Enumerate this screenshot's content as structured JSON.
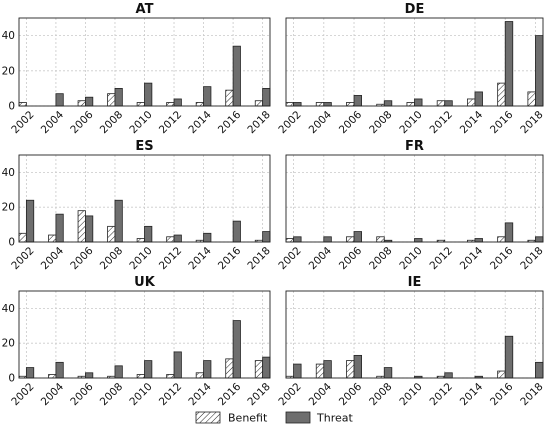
{
  "chart_data": [
    {
      "type": "bar",
      "title": "AT",
      "categories": [
        "2002",
        "2003",
        "2004",
        "2005",
        "2006",
        "2007",
        "2008",
        "2009",
        "2010",
        "2011",
        "2012",
        "2013",
        "2014",
        "2015",
        "2016",
        "2017",
        "2018"
      ],
      "series": [
        {
          "name": "Benefit",
          "values": [
            2,
            0,
            0,
            0,
            3,
            0,
            7,
            0,
            2,
            0,
            2,
            0,
            2,
            0,
            9,
            0,
            3
          ]
        },
        {
          "name": "Threat",
          "values": [
            0,
            0,
            7,
            0,
            5,
            0,
            10,
            0,
            13,
            0,
            4,
            0,
            11,
            0,
            34,
            0,
            10
          ]
        }
      ],
      "ylim": [
        0,
        50
      ],
      "yticks": [
        0,
        20,
        40
      ],
      "xticks": [
        "2002",
        "2004",
        "2006",
        "2008",
        "2010",
        "2012",
        "2014",
        "2016",
        "2018"
      ],
      "grid": true
    },
    {
      "type": "bar",
      "title": "DE",
      "categories": [
        "2002",
        "2003",
        "2004",
        "2005",
        "2006",
        "2007",
        "2008",
        "2009",
        "2010",
        "2011",
        "2012",
        "2013",
        "2014",
        "2015",
        "2016",
        "2017",
        "2018"
      ],
      "series": [
        {
          "name": "Benefit",
          "values": [
            2,
            0,
            2,
            0,
            2,
            0,
            1,
            0,
            2,
            0,
            3,
            0,
            4,
            0,
            13,
            0,
            8
          ]
        },
        {
          "name": "Threat",
          "values": [
            2,
            0,
            2,
            0,
            6,
            0,
            3,
            0,
            4,
            0,
            3,
            0,
            8,
            0,
            48,
            0,
            40
          ]
        }
      ],
      "ylim": [
        0,
        50
      ],
      "yticks": [
        0,
        20,
        40
      ],
      "xticks": [
        "2002",
        "2004",
        "2006",
        "2008",
        "2010",
        "2012",
        "2014",
        "2016",
        "2018"
      ],
      "grid": true
    },
    {
      "type": "bar",
      "title": "ES",
      "categories": [
        "2002",
        "2003",
        "2004",
        "2005",
        "2006",
        "2007",
        "2008",
        "2009",
        "2010",
        "2011",
        "2012",
        "2013",
        "2014",
        "2015",
        "2016",
        "2017",
        "2018"
      ],
      "series": [
        {
          "name": "Benefit",
          "values": [
            5,
            0,
            4,
            0,
            18,
            0,
            9,
            0,
            2,
            0,
            3,
            0,
            1,
            0,
            0,
            0,
            1
          ]
        },
        {
          "name": "Threat",
          "values": [
            24,
            0,
            16,
            0,
            15,
            0,
            24,
            0,
            9,
            0,
            4,
            0,
            5,
            0,
            12,
            0,
            6
          ]
        }
      ],
      "ylim": [
        0,
        50
      ],
      "yticks": [
        0,
        20,
        40
      ],
      "xticks": [
        "2002",
        "2004",
        "2006",
        "2008",
        "2010",
        "2012",
        "2014",
        "2016",
        "2018"
      ],
      "grid": true
    },
    {
      "type": "bar",
      "title": "FR",
      "categories": [
        "2002",
        "2003",
        "2004",
        "2005",
        "2006",
        "2007",
        "2008",
        "2009",
        "2010",
        "2011",
        "2012",
        "2013",
        "2014",
        "2015",
        "2016",
        "2017",
        "2018"
      ],
      "series": [
        {
          "name": "Benefit",
          "values": [
            2,
            0,
            0,
            0,
            3,
            0,
            3,
            0,
            0,
            0,
            1,
            0,
            1,
            0,
            3,
            0,
            1
          ]
        },
        {
          "name": "Threat",
          "values": [
            3,
            0,
            3,
            0,
            6,
            0,
            1,
            0,
            2,
            0,
            0,
            0,
            2,
            0,
            11,
            0,
            3
          ]
        }
      ],
      "ylim": [
        0,
        50
      ],
      "yticks": [
        0,
        20,
        40
      ],
      "xticks": [
        "2002",
        "2004",
        "2006",
        "2008",
        "2010",
        "2012",
        "2014",
        "2016",
        "2018"
      ],
      "grid": true
    },
    {
      "type": "bar",
      "title": "UK",
      "categories": [
        "2002",
        "2003",
        "2004",
        "2005",
        "2006",
        "2007",
        "2008",
        "2009",
        "2010",
        "2011",
        "2012",
        "2013",
        "2014",
        "2015",
        "2016",
        "2017",
        "2018"
      ],
      "series": [
        {
          "name": "Benefit",
          "values": [
            1,
            0,
            2,
            0,
            1,
            0,
            1,
            0,
            2,
            0,
            2,
            0,
            3,
            0,
            11,
            0,
            10
          ]
        },
        {
          "name": "Threat",
          "values": [
            6,
            0,
            9,
            0,
            3,
            0,
            7,
            0,
            10,
            0,
            15,
            0,
            10,
            0,
            33,
            0,
            12
          ]
        }
      ],
      "ylim": [
        0,
        50
      ],
      "yticks": [
        0,
        20,
        40
      ],
      "xticks": [
        "2002",
        "2004",
        "2006",
        "2008",
        "2010",
        "2012",
        "2014",
        "2016",
        "2018"
      ],
      "grid": true
    },
    {
      "type": "bar",
      "title": "IE",
      "categories": [
        "2002",
        "2003",
        "2004",
        "2005",
        "2006",
        "2007",
        "2008",
        "2009",
        "2010",
        "2011",
        "2012",
        "2013",
        "2014",
        "2015",
        "2016",
        "2017",
        "2018"
      ],
      "series": [
        {
          "name": "Benefit",
          "values": [
            1,
            0,
            8,
            0,
            10,
            0,
            1,
            0,
            0,
            0,
            1,
            0,
            0,
            0,
            4,
            0,
            0
          ]
        },
        {
          "name": "Threat",
          "values": [
            8,
            0,
            10,
            0,
            13,
            0,
            6,
            0,
            1,
            0,
            3,
            0,
            1,
            0,
            24,
            0,
            9
          ]
        }
      ],
      "ylim": [
        0,
        50
      ],
      "yticks": [
        0,
        20,
        40
      ],
      "xticks": [
        "2002",
        "2004",
        "2006",
        "2008",
        "2010",
        "2012",
        "2014",
        "2016",
        "2018"
      ],
      "grid": true
    }
  ],
  "legend": {
    "placement": "bottom-center",
    "items": [
      {
        "label": "Benefit",
        "style": "hatched"
      },
      {
        "label": "Threat",
        "style": "solid"
      }
    ]
  },
  "colors": {
    "threat_fill": "#6e6e6e",
    "benefit_fill": "#ffffff",
    "edge": "#222222"
  }
}
